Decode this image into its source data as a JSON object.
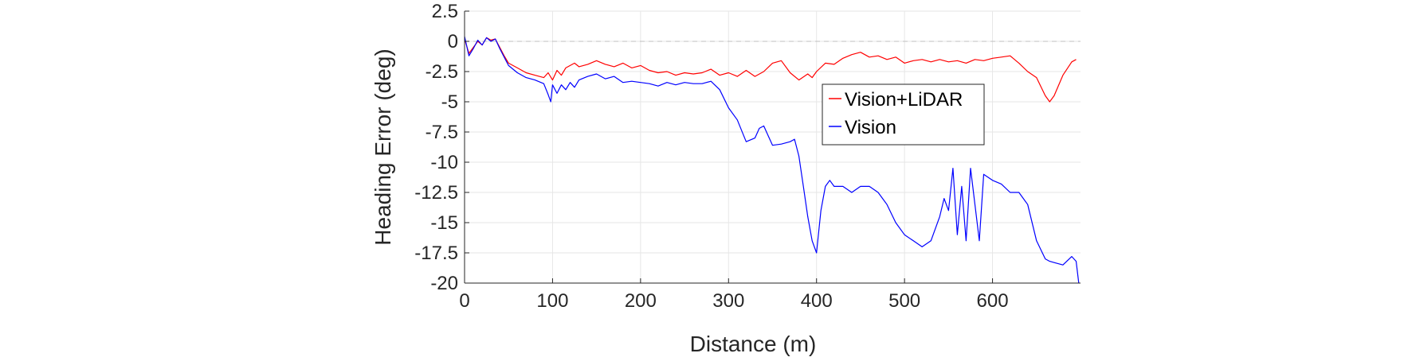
{
  "chart_data": {
    "type": "line",
    "xlabel": "Distance (m)",
    "ylabel": "Heading Error (deg)",
    "xlim": [
      0,
      700
    ],
    "ylim": [
      -20,
      2.5
    ],
    "x_ticks": [
      0,
      100,
      200,
      300,
      400,
      500,
      600
    ],
    "x_tick_labels": [
      "0",
      "100",
      "200",
      "300",
      "400",
      "500",
      "600"
    ],
    "y_ticks": [
      2.5,
      0,
      -2.5,
      -5,
      -7.5,
      -10,
      -12.5,
      -15,
      -17.5,
      -20
    ],
    "y_tick_labels": [
      "2.5",
      "0",
      "-2.5",
      "-5",
      "-7.5",
      "-10",
      "-12.5",
      "-15",
      "-17.5",
      "-20"
    ],
    "grid": true,
    "reference_line": {
      "y": 0,
      "style": "dashed",
      "color": "#bfbfbf"
    },
    "legend": {
      "position": "center-right"
    },
    "series": [
      {
        "name": "Vision+LiDAR",
        "color": "#ff0000",
        "x": [
          0,
          5,
          10,
          15,
          20,
          25,
          30,
          35,
          40,
          45,
          50,
          60,
          70,
          80,
          90,
          95,
          100,
          105,
          110,
          115,
          120,
          125,
          130,
          140,
          150,
          160,
          170,
          180,
          190,
          200,
          210,
          220,
          230,
          240,
          250,
          260,
          270,
          280,
          290,
          300,
          310,
          320,
          330,
          340,
          350,
          360,
          370,
          380,
          390,
          395,
          400,
          410,
          420,
          430,
          440,
          450,
          460,
          470,
          480,
          490,
          500,
          510,
          520,
          530,
          540,
          550,
          560,
          570,
          580,
          590,
          600,
          610,
          620,
          630,
          640,
          650,
          660,
          665,
          670,
          680,
          690,
          695
        ],
        "y": [
          0.2,
          -1.0,
          -0.5,
          0.0,
          -0.3,
          0.3,
          0.1,
          0.2,
          -0.5,
          -1.2,
          -1.8,
          -2.2,
          -2.6,
          -2.8,
          -3.0,
          -2.6,
          -3.2,
          -2.4,
          -2.8,
          -2.2,
          -2.0,
          -1.8,
          -2.1,
          -1.9,
          -1.6,
          -1.9,
          -2.1,
          -1.8,
          -2.2,
          -2.0,
          -2.4,
          -2.6,
          -2.5,
          -2.8,
          -2.6,
          -2.7,
          -2.6,
          -2.3,
          -2.8,
          -2.6,
          -2.9,
          -2.4,
          -2.9,
          -2.5,
          -1.8,
          -1.6,
          -2.6,
          -3.2,
          -2.7,
          -3.0,
          -2.5,
          -1.8,
          -1.9,
          -1.4,
          -1.1,
          -0.9,
          -1.3,
          -1.2,
          -1.5,
          -1.3,
          -1.8,
          -1.6,
          -1.5,
          -1.7,
          -1.5,
          -1.7,
          -1.6,
          -1.8,
          -1.5,
          -1.6,
          -1.4,
          -1.3,
          -1.2,
          -1.8,
          -2.5,
          -3.0,
          -4.5,
          -5.0,
          -4.5,
          -2.8,
          -1.7,
          -1.5
        ]
      },
      {
        "name": "Vision",
        "color": "#0000ff",
        "x": [
          0,
          5,
          10,
          15,
          20,
          25,
          30,
          35,
          40,
          45,
          50,
          60,
          70,
          80,
          90,
          95,
          98,
          100,
          105,
          110,
          115,
          120,
          125,
          130,
          140,
          150,
          160,
          170,
          180,
          190,
          200,
          210,
          220,
          230,
          240,
          250,
          260,
          270,
          280,
          290,
          300,
          310,
          320,
          330,
          335,
          340,
          345,
          350,
          360,
          370,
          375,
          380,
          385,
          390,
          395,
          400,
          405,
          410,
          415,
          420,
          430,
          440,
          450,
          460,
          470,
          480,
          490,
          500,
          510,
          520,
          530,
          540,
          545,
          550,
          555,
          560,
          565,
          570,
          575,
          580,
          585,
          590,
          600,
          610,
          620,
          630,
          640,
          650,
          660,
          665,
          670,
          680,
          690,
          695,
          698
        ],
        "y": [
          0.4,
          -1.2,
          -0.6,
          0.1,
          -0.3,
          0.3,
          0.0,
          0.2,
          -0.6,
          -1.3,
          -2.0,
          -2.6,
          -3.0,
          -3.2,
          -3.5,
          -4.4,
          -5.0,
          -3.6,
          -4.3,
          -3.6,
          -4.0,
          -3.4,
          -3.8,
          -3.2,
          -2.9,
          -2.7,
          -3.1,
          -2.9,
          -3.4,
          -3.3,
          -3.4,
          -3.5,
          -3.7,
          -3.4,
          -3.6,
          -3.4,
          -3.5,
          -3.5,
          -3.3,
          -4.0,
          -5.5,
          -6.5,
          -8.3,
          -8.0,
          -7.2,
          -7.0,
          -7.8,
          -8.6,
          -8.5,
          -8.3,
          -8.1,
          -9.5,
          -12.0,
          -14.5,
          -16.5,
          -17.5,
          -14.0,
          -12.0,
          -11.5,
          -12.0,
          -12.0,
          -12.5,
          -12.0,
          -12.0,
          -12.5,
          -13.5,
          -15.0,
          -16.0,
          -16.5,
          -17.0,
          -16.5,
          -14.5,
          -13.0,
          -14.0,
          -10.5,
          -16.0,
          -12.0,
          -16.5,
          -10.5,
          -13.5,
          -16.5,
          -11.0,
          -11.5,
          -11.8,
          -12.5,
          -12.5,
          -13.5,
          -16.5,
          -18.0,
          -18.2,
          -18.3,
          -18.5,
          -17.8,
          -18.2,
          -20.0
        ]
      }
    ]
  }
}
